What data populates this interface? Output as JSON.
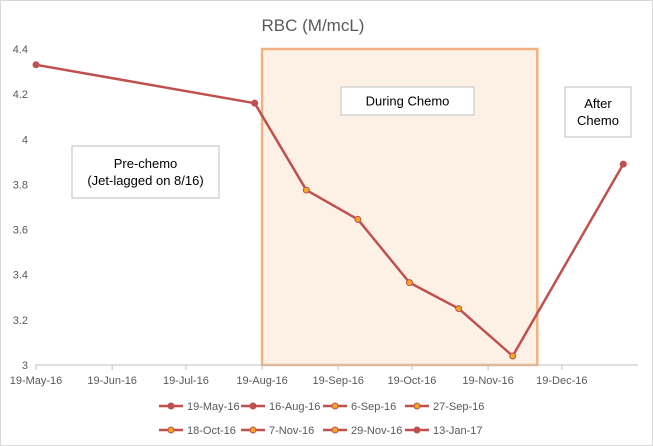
{
  "chart_data": {
    "type": "line",
    "title": "RBC (M/mcL)",
    "xlabel": "",
    "ylabel": "",
    "ylim": [
      3,
      4.4
    ],
    "yticks": [
      "3",
      "3.2",
      "3.4",
      "3.6",
      "3.8",
      "4",
      "4.2",
      "4.4"
    ],
    "x_axis": {
      "type": "date",
      "range": [
        "2016-05-19",
        "2017-01-19"
      ],
      "ticks": [
        {
          "label": "19-May-16",
          "date": "2016-05-19"
        },
        {
          "label": "19-Jun-16",
          "date": "2016-06-19"
        },
        {
          "label": "19-Jul-16",
          "date": "2016-07-19"
        },
        {
          "label": "19-Aug-16",
          "date": "2016-08-19"
        },
        {
          "label": "19-Sep-16",
          "date": "2016-09-19"
        },
        {
          "label": "19-Oct-16",
          "date": "2016-10-19"
        },
        {
          "label": "19-Nov-16",
          "date": "2016-11-19"
        },
        {
          "label": "19-Dec-16",
          "date": "2016-12-19"
        }
      ]
    },
    "points": [
      {
        "label": "19-May-16",
        "date": "2016-05-19",
        "value": 4.33,
        "color": "#c0504d",
        "during_chemo": false
      },
      {
        "label": "16-Aug-16",
        "date": "2016-08-16",
        "value": 4.16,
        "color": "#c0504d",
        "during_chemo": false
      },
      {
        "label": "6-Sep-16",
        "date": "2016-09-06",
        "value": 3.775,
        "color": "#f5a623",
        "during_chemo": true
      },
      {
        "label": "27-Sep-16",
        "date": "2016-09-27",
        "value": 3.645,
        "color": "#f5a623",
        "during_chemo": true
      },
      {
        "label": "18-Oct-16",
        "date": "2016-10-18",
        "value": 3.365,
        "color": "#f5a623",
        "during_chemo": true
      },
      {
        "label": "7-Nov-16",
        "date": "2016-11-07",
        "value": 3.25,
        "color": "#f5a623",
        "during_chemo": true
      },
      {
        "label": "29-Nov-16",
        "date": "2016-11-29",
        "value": 3.04,
        "color": "#f5a623",
        "during_chemo": true
      },
      {
        "label": "13-Jan-17",
        "date": "2017-01-13",
        "value": 3.89,
        "color": "#c0504d",
        "during_chemo": false
      }
    ],
    "line_color": "#c0504d",
    "highlight_region": {
      "start": "2016-08-19",
      "end": "2016-12-09",
      "fill": "#fdf1e6",
      "border": "#f4b183"
    },
    "annotations": [
      {
        "lines": [
          "Pre-chemo",
          "(Jet-lagged on 8/16)"
        ]
      },
      {
        "lines": [
          "During Chemo"
        ]
      },
      {
        "lines": [
          "After",
          "Chemo"
        ]
      }
    ],
    "legend": "bottom",
    "grid": false
  }
}
